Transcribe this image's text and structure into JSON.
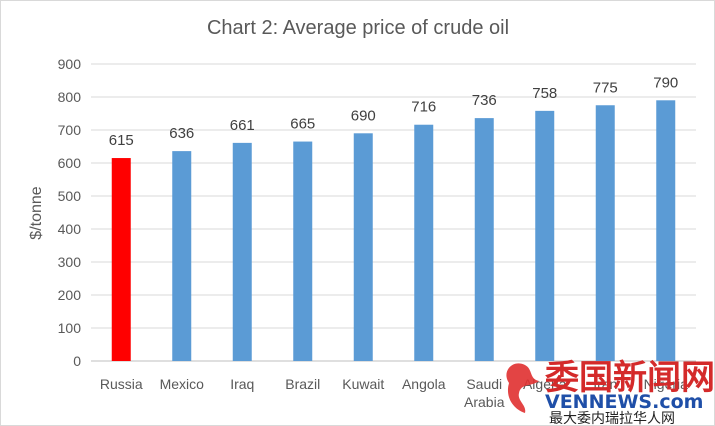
{
  "chart_data": {
    "type": "bar",
    "title": "Chart 2: Average price of crude oil",
    "xlabel": "",
    "ylabel": "$/tonne",
    "ylim": [
      0,
      900
    ],
    "yticks": [
      0,
      100,
      200,
      300,
      400,
      500,
      600,
      700,
      800,
      900
    ],
    "grid": true,
    "legend": "none",
    "categories": [
      "Russia",
      "Mexico",
      "Iraq",
      "Brazil",
      "Kuwait",
      "Angola",
      "Saudi Arabia",
      "Algeria",
      "Iran",
      "Nigeria"
    ],
    "values": [
      615,
      636,
      661,
      665,
      690,
      716,
      736,
      758,
      775,
      790
    ],
    "colors": {
      "highlight": "#ff0000",
      "default": "#5b9bd5"
    },
    "highlight_category": "Russia"
  },
  "watermark": {
    "main": "委国新闻网",
    "url": "VENNEWS.com",
    "sub": "最大委内瑞拉华人网"
  }
}
